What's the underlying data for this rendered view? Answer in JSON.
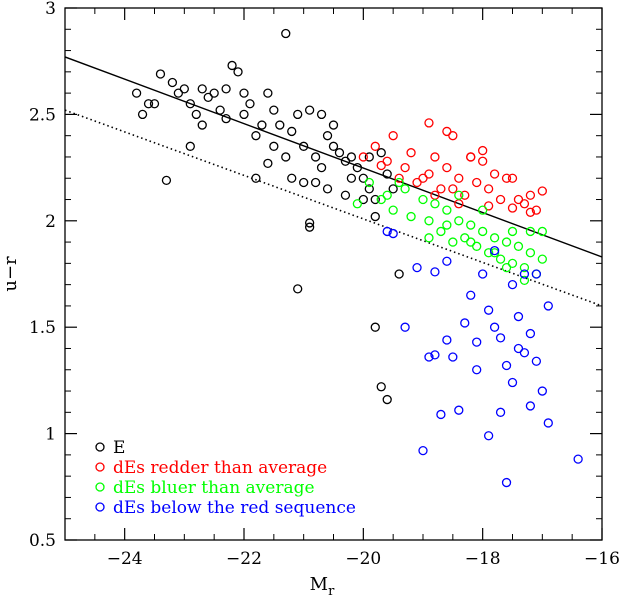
{
  "chart_data": {
    "type": "scatter",
    "title": "",
    "xlabel": "M",
    "xlabel_sub": "r",
    "ylabel": "u−r",
    "xlim": [
      -25,
      -16
    ],
    "ylim": [
      0.5,
      3
    ],
    "xticks": [
      -24,
      -22,
      -20,
      -18,
      -16
    ],
    "xtick_labels": [
      "−24",
      "−22",
      "−20",
      "−18",
      "−16"
    ],
    "yticks": [
      0.5,
      1,
      1.5,
      2,
      2.5,
      3
    ],
    "ytick_labels": [
      "0.5",
      "1",
      "1.5",
      "2",
      "2.5",
      "3"
    ],
    "grid": false,
    "legend_position": "bottom-left",
    "lines": [
      {
        "style": "solid",
        "x": [
          -25,
          -16
        ],
        "y": [
          2.77,
          1.83
        ]
      },
      {
        "style": "dotted",
        "x": [
          -25,
          -16
        ],
        "y": [
          2.52,
          1.6
        ]
      }
    ],
    "series": [
      {
        "name": "E",
        "color": "#000000",
        "points": [
          [
            -23.8,
            2.6
          ],
          [
            -23.7,
            2.5
          ],
          [
            -23.5,
            2.55
          ],
          [
            -23.4,
            2.69
          ],
          [
            -23.2,
            2.65
          ],
          [
            -23.1,
            2.6
          ],
          [
            -23.0,
            2.62
          ],
          [
            -22.9,
            2.55
          ],
          [
            -22.8,
            2.5
          ],
          [
            -22.7,
            2.62
          ],
          [
            -22.6,
            2.58
          ],
          [
            -22.5,
            2.6
          ],
          [
            -22.4,
            2.52
          ],
          [
            -22.3,
            2.48
          ],
          [
            -22.2,
            2.73
          ],
          [
            -22.1,
            2.7
          ],
          [
            -22.0,
            2.5
          ],
          [
            -21.9,
            2.55
          ],
          [
            -21.8,
            2.4
          ],
          [
            -21.7,
            2.45
          ],
          [
            -21.6,
            2.6
          ],
          [
            -21.5,
            2.52
          ],
          [
            -21.4,
            2.45
          ],
          [
            -21.3,
            2.88
          ],
          [
            -21.3,
            2.3
          ],
          [
            -21.2,
            2.42
          ],
          [
            -21.1,
            2.5
          ],
          [
            -21.0,
            2.35
          ],
          [
            -20.9,
            2.52
          ],
          [
            -20.8,
            2.3
          ],
          [
            -20.7,
            2.25
          ],
          [
            -20.6,
            2.4
          ],
          [
            -20.5,
            2.35
          ],
          [
            -20.4,
            2.32
          ],
          [
            -20.3,
            2.28
          ],
          [
            -20.2,
            2.3
          ],
          [
            -20.1,
            2.25
          ],
          [
            -20.0,
            2.2
          ],
          [
            -19.9,
            2.15
          ],
          [
            -19.8,
            2.1
          ],
          [
            -23.3,
            2.19
          ],
          [
            -21.8,
            2.2
          ],
          [
            -21.2,
            2.2
          ],
          [
            -20.8,
            2.18
          ],
          [
            -20.6,
            2.15
          ],
          [
            -21.0,
            2.18
          ],
          [
            -20.9,
            1.99
          ],
          [
            -20.9,
            1.97
          ],
          [
            -21.1,
            1.68
          ],
          [
            -19.8,
            1.5
          ],
          [
            -19.7,
            1.22
          ],
          [
            -19.6,
            1.16
          ],
          [
            -19.4,
            1.75
          ],
          [
            -20.3,
            2.12
          ],
          [
            -19.8,
            2.02
          ],
          [
            -22.0,
            2.6
          ],
          [
            -22.3,
            2.62
          ],
          [
            -21.5,
            2.35
          ],
          [
            -20.7,
            2.5
          ],
          [
            -20.5,
            2.45
          ],
          [
            -19.6,
            2.22
          ],
          [
            -19.5,
            2.15
          ],
          [
            -19.7,
            2.32
          ],
          [
            -19.9,
            2.3
          ],
          [
            -20.2,
            2.2
          ],
          [
            -20.0,
            2.1
          ],
          [
            -21.6,
            2.27
          ],
          [
            -22.7,
            2.45
          ],
          [
            -22.9,
            2.35
          ],
          [
            -23.6,
            2.55
          ]
        ]
      },
      {
        "name": "dEs redder than average",
        "color": "#ff0000",
        "points": [
          [
            -20.0,
            2.3
          ],
          [
            -19.8,
            2.35
          ],
          [
            -19.6,
            2.28
          ],
          [
            -19.5,
            2.4
          ],
          [
            -19.3,
            2.25
          ],
          [
            -19.2,
            2.32
          ],
          [
            -19.0,
            2.2
          ],
          [
            -18.9,
            2.46
          ],
          [
            -18.8,
            2.3
          ],
          [
            -18.7,
            2.15
          ],
          [
            -18.6,
            2.25
          ],
          [
            -18.5,
            2.4
          ],
          [
            -18.4,
            2.2
          ],
          [
            -18.3,
            2.12
          ],
          [
            -18.2,
            2.3
          ],
          [
            -18.1,
            2.18
          ],
          [
            -18.0,
            2.28
          ],
          [
            -17.9,
            2.15
          ],
          [
            -17.8,
            2.22
          ],
          [
            -17.7,
            2.1
          ],
          [
            -17.6,
            2.2
          ],
          [
            -17.5,
            2.06
          ],
          [
            -17.4,
            2.1
          ],
          [
            -17.3,
            2.08
          ],
          [
            -17.2,
            2.12
          ],
          [
            -17.1,
            2.05
          ],
          [
            -17.0,
            2.14
          ],
          [
            -18.6,
            2.42
          ],
          [
            -18.2,
            2.3
          ],
          [
            -19.4,
            2.2
          ],
          [
            -18.0,
            2.33
          ],
          [
            -17.9,
            2.07
          ],
          [
            -18.4,
            2.08
          ],
          [
            -19.1,
            2.18
          ],
          [
            -18.9,
            2.22
          ],
          [
            -17.5,
            2.2
          ],
          [
            -17.2,
            2.04
          ],
          [
            -18.8,
            2.12
          ],
          [
            -19.7,
            2.26
          ],
          [
            -18.5,
            2.15
          ]
        ]
      },
      {
        "name": "dEs bluer than average",
        "color": "#00ff00",
        "points": [
          [
            -20.1,
            2.08
          ],
          [
            -19.9,
            2.18
          ],
          [
            -19.7,
            2.1
          ],
          [
            -19.5,
            2.05
          ],
          [
            -19.3,
            2.15
          ],
          [
            -19.2,
            2.02
          ],
          [
            -19.0,
            2.1
          ],
          [
            -18.9,
            2.0
          ],
          [
            -18.8,
            2.08
          ],
          [
            -18.7,
            1.95
          ],
          [
            -18.6,
            2.05
          ],
          [
            -18.5,
            1.9
          ],
          [
            -18.4,
            2.0
          ],
          [
            -18.3,
            1.92
          ],
          [
            -18.2,
            1.98
          ],
          [
            -18.1,
            1.88
          ],
          [
            -18.0,
            1.95
          ],
          [
            -17.9,
            1.85
          ],
          [
            -17.8,
            1.92
          ],
          [
            -17.7,
            1.82
          ],
          [
            -17.6,
            1.9
          ],
          [
            -17.5,
            1.8
          ],
          [
            -17.4,
            1.88
          ],
          [
            -17.3,
            1.78
          ],
          [
            -17.2,
            1.85
          ],
          [
            -17.1,
            1.75
          ],
          [
            -17.0,
            1.82
          ],
          [
            -19.4,
            2.18
          ],
          [
            -18.6,
            1.98
          ],
          [
            -18.2,
            1.9
          ],
          [
            -17.8,
            1.85
          ],
          [
            -17.5,
            1.95
          ],
          [
            -17.2,
            1.95
          ],
          [
            -17.0,
            1.95
          ],
          [
            -18.9,
            1.92
          ],
          [
            -19.6,
            2.12
          ],
          [
            -18.4,
            2.12
          ],
          [
            -17.6,
            1.78
          ],
          [
            -18.0,
            2.05
          ],
          [
            -17.3,
            1.72
          ]
        ]
      },
      {
        "name": "dEs below the red sequence",
        "color": "#0000ff",
        "points": [
          [
            -19.6,
            1.95
          ],
          [
            -19.3,
            1.5
          ],
          [
            -19.1,
            1.78
          ],
          [
            -18.9,
            1.36
          ],
          [
            -18.8,
            1.37
          ],
          [
            -18.7,
            1.09
          ],
          [
            -18.6,
            1.44
          ],
          [
            -18.5,
            1.36
          ],
          [
            -18.4,
            1.11
          ],
          [
            -18.3,
            1.52
          ],
          [
            -18.2,
            1.65
          ],
          [
            -18.1,
            1.3
          ],
          [
            -18.0,
            1.75
          ],
          [
            -17.9,
            1.58
          ],
          [
            -17.8,
            1.5
          ],
          [
            -17.7,
            1.45
          ],
          [
            -17.6,
            1.32
          ],
          [
            -17.5,
            1.7
          ],
          [
            -17.4,
            1.55
          ],
          [
            -17.3,
            1.38
          ],
          [
            -17.2,
            1.47
          ],
          [
            -17.1,
            1.34
          ],
          [
            -17.0,
            1.2
          ],
          [
            -16.9,
            1.05
          ],
          [
            -16.4,
            0.88
          ],
          [
            -19.0,
            0.92
          ],
          [
            -17.9,
            0.99
          ],
          [
            -17.6,
            0.77
          ],
          [
            -19.5,
            1.94
          ],
          [
            -18.6,
            1.81
          ],
          [
            -17.8,
            1.86
          ],
          [
            -17.4,
            1.4
          ],
          [
            -17.2,
            1.13
          ],
          [
            -16.9,
            1.6
          ],
          [
            -17.1,
            1.75
          ],
          [
            -17.5,
            1.24
          ],
          [
            -17.7,
            1.1
          ],
          [
            -18.1,
            1.43
          ],
          [
            -18.8,
            1.76
          ],
          [
            -17.3,
            1.75
          ]
        ]
      }
    ]
  }
}
